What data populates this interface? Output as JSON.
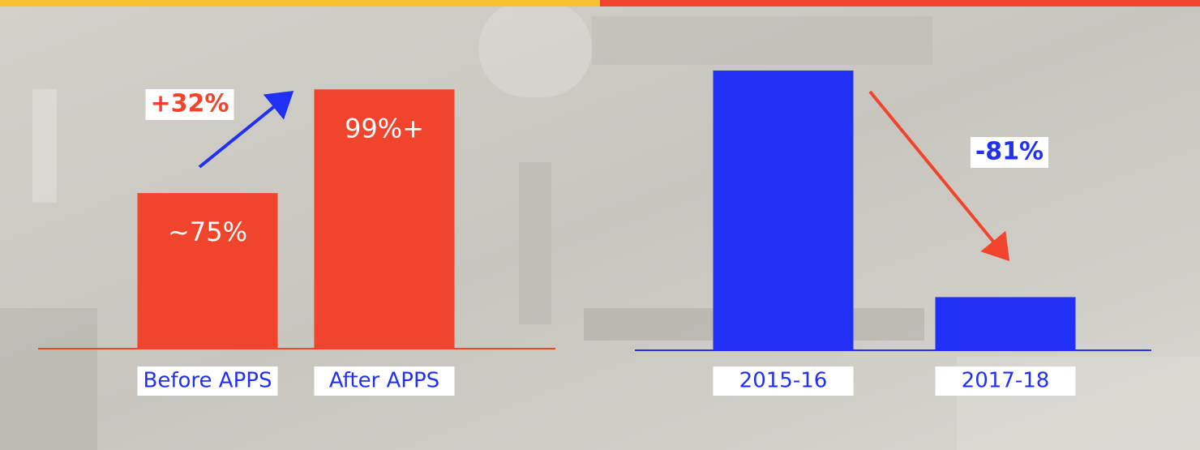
{
  "chart_data": [
    {
      "type": "bar",
      "categories": [
        "Before APPS",
        "After APPS"
      ],
      "values": [
        75,
        99
      ],
      "value_labels": [
        "~75%",
        "99%+"
      ],
      "color": "#f0442c",
      "annotation": "+32%",
      "ylim": [
        39,
        115
      ]
    },
    {
      "type": "bar",
      "categories": [
        "2015-16",
        "2017-18"
      ],
      "values": [
        100,
        19
      ],
      "color": "#2130f5",
      "annotation": "-81%",
      "ylim": [
        0,
        100
      ]
    }
  ]
}
